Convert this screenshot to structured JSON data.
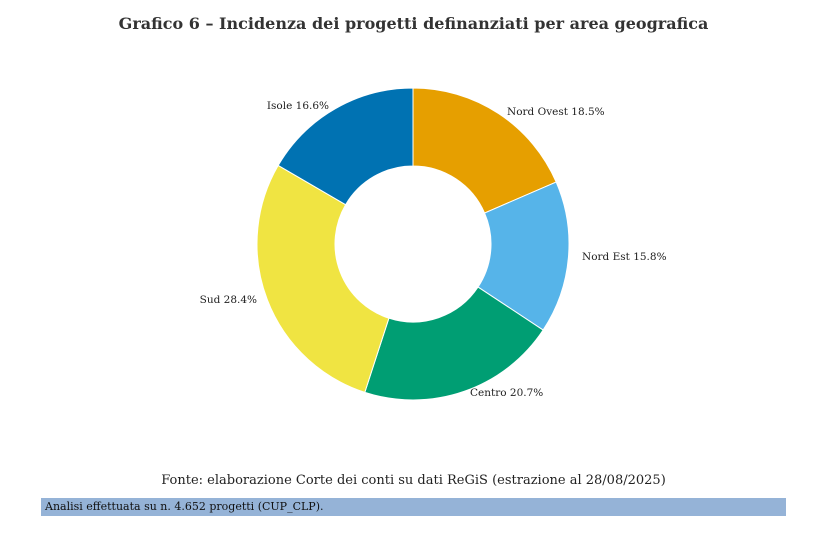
{
  "title": "Grafico 6 – Incidenza dei progetti definanziati per area geografica",
  "chart_data": {
    "type": "pie",
    "subtype": "donut",
    "title": "Grafico 6 – Incidenza dei progetti definanziati per area geografica",
    "unit": "%",
    "slices": [
      {
        "label": "Nord Ovest",
        "value": 18.5,
        "display": "Nord Ovest 18.5%",
        "color": "#e69f00"
      },
      {
        "label": "Nord Est",
        "value": 15.8,
        "display": "Nord Est 15.8%",
        "color": "#56b4e9"
      },
      {
        "label": "Centro",
        "value": 20.7,
        "display": "Centro 20.7%",
        "color": "#009e73"
      },
      {
        "label": "Sud",
        "value": 28.4,
        "display": "Sud 28.4%",
        "color": "#f0e442"
      },
      {
        "label": "Isole",
        "value": 16.6,
        "display": "Isole 16.6%",
        "color": "#0072b2"
      }
    ]
  },
  "source": "Fonte: elaborazione Corte dei conti su dati ReGiS (estrazione al 28/08/2025)",
  "note": "Analisi effettuata su n. 4.652 progetti (CUP_CLP)."
}
